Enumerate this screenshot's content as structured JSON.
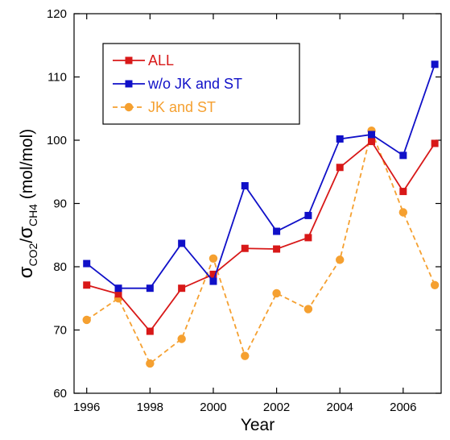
{
  "chart_data": {
    "type": "line",
    "xlabel": "Year",
    "ylabel": "σCO2/σCH4 (mol/mol)",
    "ylabel_parts": {
      "sym1": "σ",
      "sub1": "CO2",
      "slash": "/",
      "sym2": "σ",
      "sub2": "CH4",
      "unit": " (mol/mol)"
    },
    "xlim": [
      1995.6,
      2007.2
    ],
    "ylim": [
      60,
      120
    ],
    "x_ticks": [
      1996,
      1998,
      2000,
      2002,
      2004,
      2006
    ],
    "x_tick_labels": [
      "1996",
      "1998",
      "2000",
      "2002",
      "2004",
      "2006"
    ],
    "y_ticks": [
      60,
      70,
      80,
      90,
      100,
      110,
      120
    ],
    "y_tick_labels": [
      "60",
      "70",
      "80",
      "90",
      "100",
      "110",
      "120"
    ],
    "grid": false,
    "legend_position": "top-left",
    "x": [
      1996,
      1997,
      1998,
      1999,
      2000,
      2001,
      2002,
      2003,
      2004,
      2005,
      2006,
      2007
    ],
    "series": [
      {
        "name": "ALL",
        "color": "#d81818",
        "marker": "square",
        "dash": "solid",
        "values": [
          77.1,
          75.7,
          69.8,
          76.6,
          78.8,
          82.9,
          82.8,
          84.6,
          95.7,
          99.8,
          91.9,
          99.5
        ]
      },
      {
        "name": "w/o JK and ST",
        "color": "#1010c8",
        "marker": "square",
        "dash": "solid",
        "values": [
          80.5,
          76.6,
          76.6,
          83.7,
          77.7,
          92.8,
          85.6,
          88.1,
          100.2,
          100.9,
          97.6,
          112.0
        ]
      },
      {
        "name": "JK and ST",
        "color": "#f5a030",
        "marker": "circle",
        "dash": "dashed",
        "values": [
          71.6,
          75.0,
          64.7,
          68.6,
          81.3,
          65.9,
          75.8,
          73.3,
          81.1,
          101.5,
          88.6,
          77.1
        ]
      }
    ]
  }
}
